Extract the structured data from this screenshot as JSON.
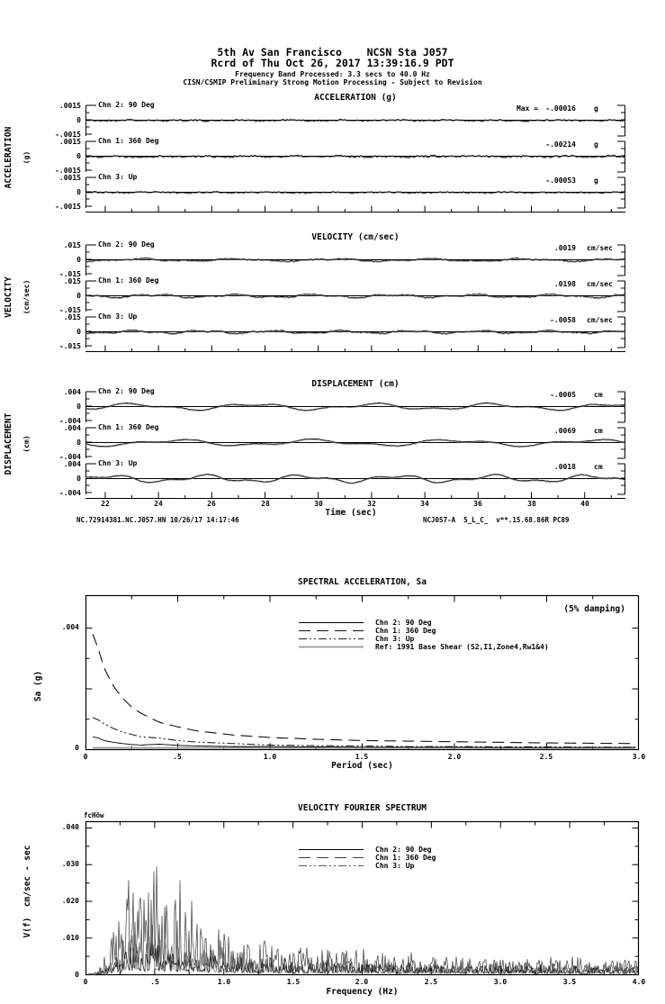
{
  "colors": {
    "ink": "#000000",
    "paper": "#ffffff",
    "gray_trace": "#888888",
    "ref_gray": "#999999"
  },
  "header": {
    "line1": "5th Av San Francisco    NCSN Sta J057",
    "line2": "Rcrd of Thu Oct 26, 2017 13:39:16.9 PDT",
    "line3": "Frequency Band Processed: 3.3 secs to 40.0 Hz",
    "line4": "CISN/CSMIP Preliminary Strong Motion Processing - Subject to Revision"
  },
  "time_series": {
    "xlabel": "Time (sec)",
    "x_ticks": [
      "22",
      "24",
      "26",
      "28",
      "30",
      "32",
      "34",
      "36",
      "38",
      "40"
    ],
    "footer_left": "NC.72914381.NC.J057.HN 10/26/17 14:17:46",
    "footer_right": "NCJ057-A  S_L_C_  v**.15.68.86R PC89",
    "panels": [
      {
        "title": "ACCELERATION (g)",
        "side": "ACCELERATION",
        "side_units": "(g)",
        "y_ticks": [
          ".0015",
          "0",
          "-.0015"
        ],
        "channels": [
          {
            "label": "Chn 2: 90 Deg",
            "max_prefix": "Max =",
            "max": "-.00016",
            "units": "g"
          },
          {
            "label": "Chn 1: 360 Deg",
            "max": "-.00214",
            "units": "g"
          },
          {
            "label": "Chn 3: Up",
            "max": "-.00053",
            "units": "g"
          }
        ]
      },
      {
        "title": "VELOCITY (cm/sec)",
        "side": "VELOCITY",
        "side_units": "(cm/sec)",
        "y_ticks": [
          ".015",
          "0",
          "-.015"
        ],
        "channels": [
          {
            "label": "Chn 2: 90 Deg",
            "max": ".0019",
            "units": "cm/sec"
          },
          {
            "label": "Chn 1: 360 Deg",
            "max": ".0198",
            "units": "cm/sec"
          },
          {
            "label": "Chn 3: Up",
            "max": "-.0058",
            "units": "cm/sec"
          }
        ]
      },
      {
        "title": "DISPLACEMENT (cm)",
        "side": "DISPLACEMENT",
        "side_units": "(cm)",
        "y_ticks": [
          ".004",
          "0",
          "-.004"
        ],
        "channels": [
          {
            "label": "Chn 2: 90 Deg",
            "max": "-.0005",
            "units": "cm"
          },
          {
            "label": "Chn 1: 360 Deg",
            "max": ".0069",
            "units": "cm"
          },
          {
            "label": "Chn 3: Up",
            "max": ".0018",
            "units": "cm"
          }
        ]
      }
    ]
  },
  "sa": {
    "title": "SPECTRAL ACCELERATION, Sa",
    "damping_note": "(5% damping)",
    "ylabel": "Sa (g)",
    "xlabel": "Period (sec)",
    "y_ticks": [
      ".004",
      "0"
    ],
    "x_ticks": [
      "0",
      ".5",
      "1.0",
      "1.5",
      "2.0",
      "2.5",
      "3.0"
    ],
    "legend": [
      "Chn 2: 90 Deg",
      "Chn 1: 360 Deg",
      "Chn 3: Up",
      "Ref: 1991 Base Shear (S2,I1,Zone4,Rw1&4)"
    ]
  },
  "fourier": {
    "title": "VELOCITY FOURIER SPECTRUM",
    "corner_label": "fcHöw",
    "ylabel": "V(f)  cm/sec - sec",
    "xlabel": "Frequency (Hz)",
    "y_ticks": [
      ".040",
      ".030",
      ".020",
      ".010",
      "0"
    ],
    "x_ticks": [
      "0",
      ".5",
      "1.0",
      "1.5",
      "2.0",
      "2.5",
      "3.0",
      "3.5",
      "4.0"
    ],
    "legend": [
      "Chn 2: 90 Deg",
      "Chn 1: 360 Deg",
      "Chn 3: Up"
    ]
  },
  "chart_data": [
    {
      "id": "acceleration",
      "type": "line",
      "title": "ACCELERATION (g)",
      "xlabel": "Time (sec)",
      "x_range_sec": [
        21.3,
        41.5
      ],
      "x_ticks": [
        22,
        24,
        26,
        28,
        30,
        32,
        34,
        36,
        38,
        40
      ],
      "channel_y_range": [
        -0.0015,
        0.0015
      ],
      "units": "g",
      "series": [
        {
          "name": "Chn 2: 90 Deg",
          "peak_value": -0.00016,
          "noise": 8e-05,
          "wobble": 3e-05,
          "wobble_period_sec": 2.0,
          "seed": 21
        },
        {
          "name": "Chn 1: 360 Deg",
          "peak_value": -0.00214,
          "noise": 0.0001,
          "wobble": 3e-05,
          "wobble_period_sec": 1.7,
          "seed": 22
        },
        {
          "name": "Chn 3: Up",
          "peak_value": -0.00053,
          "noise": 7e-05,
          "wobble": 2e-05,
          "wobble_period_sec": 2.2,
          "seed": 23
        }
      ]
    },
    {
      "id": "velocity",
      "type": "line",
      "title": "VELOCITY (cm/sec)",
      "xlabel": "Time (sec)",
      "x_range_sec": [
        21.3,
        41.5
      ],
      "x_ticks": [
        22,
        24,
        26,
        28,
        30,
        32,
        34,
        36,
        38,
        40
      ],
      "channel_y_range": [
        -0.015,
        0.015
      ],
      "units": "cm/sec",
      "series": [
        {
          "name": "Chn 2: 90 Deg",
          "peak_value": 0.0019,
          "noise": 0.0005,
          "wobble": 0.0011,
          "wobble_period_sec": 3.6,
          "seed": 31
        },
        {
          "name": "Chn 1: 360 Deg",
          "peak_value": 0.0198,
          "noise": 0.0006,
          "wobble": 0.0013,
          "wobble_period_sec": 3.0,
          "seed": 32
        },
        {
          "name": "Chn 3: Up",
          "peak_value": -0.0058,
          "noise": 0.0005,
          "wobble": 0.0012,
          "wobble_period_sec": 2.6,
          "seed": 33
        }
      ]
    },
    {
      "id": "displacement",
      "type": "line",
      "title": "DISPLACEMENT (cm)",
      "xlabel": "Time (sec)",
      "x_range_sec": [
        21.3,
        41.5
      ],
      "x_ticks": [
        22,
        24,
        26,
        28,
        30,
        32,
        34,
        36,
        38,
        40
      ],
      "channel_y_range": [
        -0.004,
        0.004
      ],
      "units": "cm",
      "series": [
        {
          "name": "Chn 2: 90 Deg",
          "peak_value": -0.0005,
          "noise": 6e-05,
          "wobble": 0.0007,
          "wobble_period_sec": 4.5,
          "seed": 41
        },
        {
          "name": "Chn 1: 360 Deg",
          "peak_value": 0.0069,
          "noise": 6e-05,
          "wobble": 0.0007,
          "wobble_period_sec": 5.2,
          "seed": 42
        },
        {
          "name": "Chn 3: Up",
          "peak_value": 0.0018,
          "noise": 6e-05,
          "wobble": 0.0008,
          "wobble_period_sec": 3.6,
          "seed": 43
        }
      ]
    },
    {
      "id": "sa",
      "type": "line",
      "title": "SPECTRAL ACCELERATION, Sa",
      "xlabel": "Period (sec)",
      "ylabel": "Sa (g)",
      "damping": "5%",
      "x_range": [
        0,
        3.0
      ],
      "y_range": [
        0,
        0.005
      ],
      "y_tick_values": [
        0,
        0.004
      ],
      "legend_position": "top-center",
      "series": [
        {
          "name": "Chn 2: 90 Deg",
          "stroke": "#000000",
          "width": 0.9,
          "dash": "",
          "legend_dash": "",
          "x": [
            0.04,
            0.07,
            0.1,
            0.15,
            0.2,
            0.25,
            0.3,
            0.4,
            0.5,
            0.6,
            0.8,
            1.0,
            1.25,
            1.5,
            1.75,
            2.0,
            2.25,
            2.5,
            2.75,
            3.0
          ],
          "y": [
            0.00042,
            0.00038,
            0.0003,
            0.00024,
            0.0002,
            0.00017,
            0.00015,
            0.00018,
            0.00014,
            0.00012,
            0.0001,
            0.0001,
            9e-05,
            8e-05,
            8e-05,
            8e-05,
            7e-05,
            7e-05,
            7e-05,
            7e-05
          ]
        },
        {
          "name": "Chn 1: 360 Deg",
          "stroke": "#111111",
          "width": 1.1,
          "dash": "13 7",
          "legend_dash": "13 7",
          "x": [
            0.04,
            0.07,
            0.1,
            0.15,
            0.2,
            0.25,
            0.3,
            0.4,
            0.5,
            0.6,
            0.8,
            1.0,
            1.25,
            1.5,
            1.75,
            2.0,
            2.25,
            2.5,
            2.75,
            3.0
          ],
          "y": [
            0.0038,
            0.0033,
            0.0027,
            0.0021,
            0.0017,
            0.0014,
            0.0012,
            0.0009,
            0.00075,
            0.00062,
            0.00048,
            0.0004,
            0.00034,
            0.0003,
            0.00028,
            0.00026,
            0.00024,
            0.00022,
            0.00021,
            0.0002
          ]
        },
        {
          "name": "Chn 3: Up",
          "stroke": "#222222",
          "width": 1.1,
          "dash": "9 3 2 3 2 3",
          "legend_dash": "9 3 2 3 2 3",
          "x": [
            0.04,
            0.07,
            0.1,
            0.15,
            0.2,
            0.25,
            0.3,
            0.4,
            0.5,
            0.6,
            0.8,
            1.0,
            1.25,
            1.5,
            1.75,
            2.0,
            2.25,
            2.5,
            2.75,
            3.0
          ],
          "y": [
            0.00105,
            0.00098,
            0.00085,
            0.0007,
            0.00058,
            0.0005,
            0.00042,
            0.00038,
            0.0003,
            0.00025,
            0.0002,
            0.00015,
            0.00013,
            0.00012,
            0.0001,
            0.0001,
            9e-05,
            9e-05,
            8e-05,
            8e-05
          ]
        },
        {
          "name": "Ref: 1991 Base Shear (S2,I1,Zone4,Rw1&4)",
          "stroke": "#999999",
          "width": 1.8,
          "dash": "",
          "legend_dash": "",
          "x": [
            0.04,
            3.0
          ],
          "y": [
            6e-05,
            6e-05
          ]
        }
      ]
    },
    {
      "id": "fourier",
      "type": "line",
      "title": "VELOCITY FOURIER SPECTRUM",
      "xlabel": "Frequency (Hz)",
      "ylabel": "V(f) cm/sec - sec",
      "x_range": [
        0,
        4.0
      ],
      "y_range": [
        0,
        0.0417
      ],
      "y_tick_values": [
        0,
        0.01,
        0.02,
        0.03,
        0.04
      ],
      "series": [
        {
          "name": "Chn 2: 90 Deg",
          "stroke": "#000000",
          "width": 0.7,
          "dash": "",
          "legend_dash": "",
          "seed": 101,
          "envelope_x": [
            0.05,
            0.1,
            0.15,
            0.2,
            0.25,
            0.3,
            0.35,
            0.4,
            0.45,
            0.5,
            0.55,
            0.6,
            0.7,
            0.8,
            0.9,
            1.0,
            1.2,
            1.5,
            2.0,
            2.5,
            3.0,
            3.5,
            4.0
          ],
          "envelope_y": [
            0.0002,
            0.001,
            0.002,
            0.004,
            0.006,
            0.008,
            0.0075,
            0.008,
            0.007,
            0.009,
            0.008,
            0.007,
            0.0065,
            0.006,
            0.0055,
            0.005,
            0.0045,
            0.0035,
            0.003,
            0.0027,
            0.0025,
            0.0022,
            0.002
          ]
        },
        {
          "name": "Chn 1: 360 Deg",
          "stroke": "#3c3c3c",
          "width": 0.7,
          "dash": "",
          "legend_dash": "13 7",
          "seed": 102,
          "envelope_x": [
            0.05,
            0.1,
            0.15,
            0.2,
            0.25,
            0.3,
            0.35,
            0.4,
            0.45,
            0.5,
            0.55,
            0.6,
            0.7,
            0.8,
            0.9,
            1.0,
            1.2,
            1.5,
            2.0,
            2.5,
            3.0,
            3.5,
            4.0
          ],
          "envelope_y": [
            0.0004,
            0.002,
            0.006,
            0.012,
            0.019,
            0.026,
            0.022,
            0.024,
            0.02,
            0.034,
            0.026,
            0.02,
            0.021,
            0.015,
            0.013,
            0.011,
            0.009,
            0.0075,
            0.006,
            0.005,
            0.0045,
            0.004,
            0.004
          ]
        },
        {
          "name": "Chn 3: Up",
          "stroke": "#5a5a5a",
          "width": 0.7,
          "dash": "",
          "legend_dash": "9 3 2 3 2 3",
          "seed": 103,
          "envelope_x": [
            0.05,
            0.1,
            0.15,
            0.2,
            0.25,
            0.3,
            0.35,
            0.4,
            0.45,
            0.5,
            0.55,
            0.6,
            0.7,
            0.8,
            0.9,
            1.0,
            1.2,
            1.5,
            2.0,
            2.5,
            3.0,
            3.5,
            4.0
          ],
          "envelope_y": [
            0.0003,
            0.0012,
            0.003,
            0.006,
            0.009,
            0.013,
            0.011,
            0.011,
            0.01,
            0.012,
            0.01,
            0.009,
            0.008,
            0.007,
            0.0065,
            0.006,
            0.005,
            0.004,
            0.0035,
            0.003,
            0.003,
            0.0027,
            0.0025
          ]
        }
      ]
    }
  ]
}
